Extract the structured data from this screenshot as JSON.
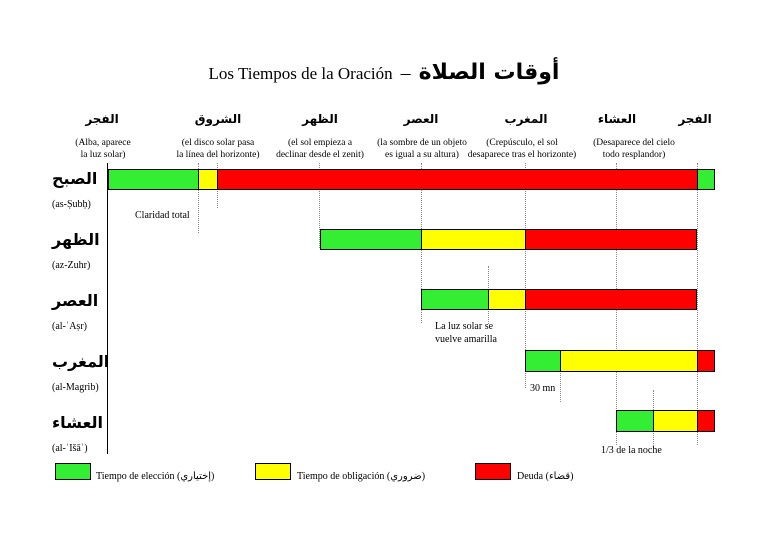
{
  "title": {
    "spanish": "Los Tiempos de la Oración",
    "dash": "–",
    "arabic": "أوقات الصلاة"
  },
  "colors": {
    "choice": "#33ee33",
    "obligation": "#ffff00",
    "debt": "#ff0000"
  },
  "phases": [
    {
      "arabic": "الفجر",
      "desc1": "(Alba, aparece",
      "desc2": "la luz solar)"
    },
    {
      "arabic": "الشروق",
      "desc1": "(el disco solar pasa",
      "desc2": "la línea del horizonte)"
    },
    {
      "arabic": "الظهر",
      "desc1": "(el sol empieza a",
      "desc2": "declinar desde el zenit)"
    },
    {
      "arabic": "العصر",
      "desc1": "(la sombre de un objeto",
      "desc2": "es igual a su altura)"
    },
    {
      "arabic": "المغرب",
      "desc1": "(Crepúsculo, el sol",
      "desc2": "desaparece tras el horizonte)"
    },
    {
      "arabic": "العشاء",
      "desc1": "(Desaparece del cielo",
      "desc2": "todo resplandor)"
    },
    {
      "arabic": "الفجر",
      "desc1": "",
      "desc2": ""
    }
  ],
  "prayers": [
    {
      "arabic": "الصبح",
      "translit": "(as-Ṣubḥ)"
    },
    {
      "arabic": "الظهر",
      "translit": "(az-Zuhr)"
    },
    {
      "arabic": "العصر",
      "translit": "(al-ʿAṣr)"
    },
    {
      "arabic": "المغرب",
      "translit": "(al-Magrib)"
    },
    {
      "arabic": "العشاء",
      "translit": "(al-ʿIšāʾ)"
    }
  ],
  "notes": {
    "claridad": "Claridad total",
    "luz_line1": "La luz solar se",
    "luz_line2": "vuelve amarilla",
    "thirty": "30 mn",
    "night": "1/3 de la noche"
  },
  "legend": {
    "choice": "Tiempo de elección (إختياري)",
    "obligation": "Tiempo de obligación (ضروري)",
    "debt": "Deuda (قضاء)"
  }
}
